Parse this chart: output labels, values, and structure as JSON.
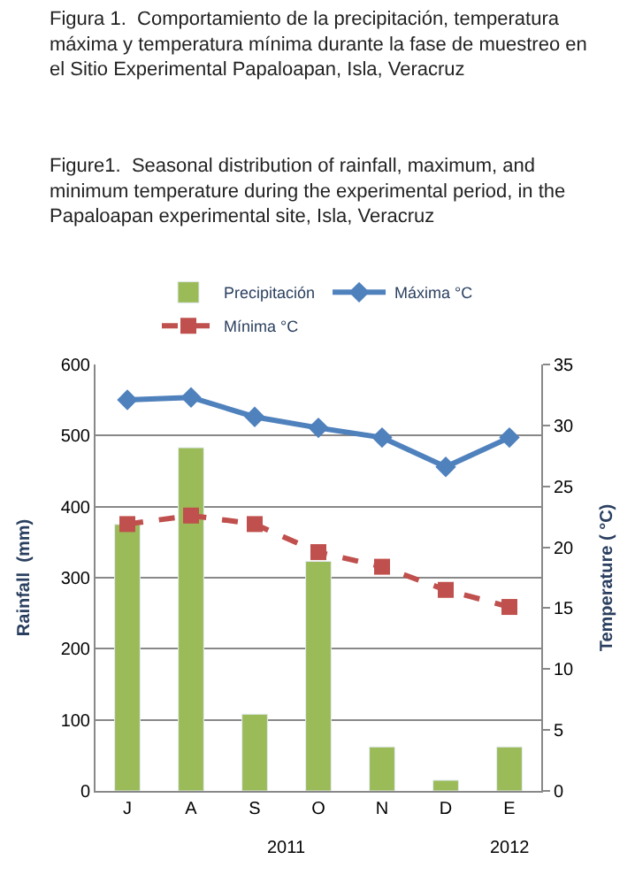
{
  "chart_data": {
    "type": "bar",
    "title": "Figura 1.  Comportamiento de la precipitación, temperatura máxima y temperatura mínima durante la fase de muestreo en el Sitio Experimental Papaloapan, Isla, Veracruz",
    "subtitle": "Figure1.  Seasonal distribution of rainfall, maximum, and minimum temperature during the experimental period, in the Papaloapan experimental site, Isla, Veracruz",
    "ylabel": "Rainfall  (mm)",
    "y2label": "Temperature ( °C)",
    "categories": [
      "J",
      "A",
      "S",
      "O",
      "N",
      "D",
      "E"
    ],
    "series": [
      {
        "name": "Precipitación",
        "color": "#9bbb59",
        "values": [
          375,
          483,
          108,
          323,
          62,
          15,
          62
        ]
      },
      {
        "name": "Máxima °C",
        "type": "line",
        "axis": "y2",
        "color": "#4f81bd",
        "marker": "diamond",
        "line_style": "solid",
        "values": [
          32.1,
          32.3,
          30.7,
          29.8,
          29.0,
          26.6,
          29.0
        ]
      },
      {
        "name": "Mínima °C",
        "type": "line",
        "axis": "y2",
        "color": "#c0504d",
        "marker": "square",
        "line_style": "dashed",
        "values": [
          21.9,
          22.6,
          21.9,
          19.6,
          18.4,
          16.5,
          15.1
        ]
      }
    ],
    "ylim": [
      0,
      600
    ],
    "yticks": [
      0,
      100,
      200,
      300,
      400,
      500,
      600
    ],
    "y2lim": [
      0,
      35
    ],
    "y2ticks": [
      0,
      5,
      10,
      15,
      20,
      25,
      30,
      35
    ],
    "grid": "y",
    "legend": "top",
    "annotations": [
      "2011",
      "2012"
    ]
  }
}
